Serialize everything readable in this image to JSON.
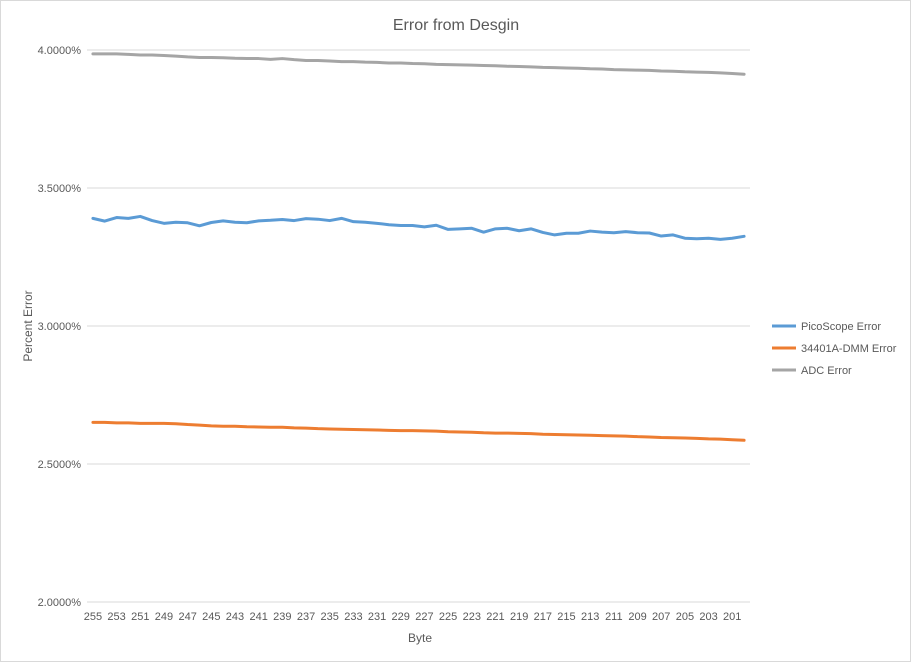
{
  "chart_data": {
    "type": "line",
    "title": "Error from Desgin",
    "xlabel": "Byte",
    "ylabel": "Percent Error",
    "ylim": [
      2.0,
      4.0
    ],
    "yticks": [
      "2.0000%",
      "2.5000%",
      "3.0000%",
      "3.5000%",
      "4.0000%"
    ],
    "ytick_values": [
      2.0,
      2.5,
      3.0,
      3.5,
      4.0
    ],
    "x": [
      255,
      254,
      253,
      252,
      251,
      250,
      249,
      248,
      247,
      246,
      245,
      244,
      243,
      242,
      241,
      240,
      239,
      238,
      237,
      236,
      235,
      234,
      233,
      232,
      231,
      230,
      229,
      228,
      227,
      226,
      225,
      224,
      223,
      222,
      221,
      220,
      219,
      218,
      217,
      216,
      215,
      214,
      213,
      212,
      211,
      210,
      209,
      208,
      207,
      206,
      205,
      204,
      203,
      202,
      201,
      200
    ],
    "xtick_labels": [
      "255",
      "253",
      "251",
      "249",
      "247",
      "245",
      "243",
      "241",
      "239",
      "237",
      "235",
      "233",
      "231",
      "229",
      "227",
      "225",
      "223",
      "221",
      "219",
      "217",
      "215",
      "213",
      "211",
      "209",
      "207",
      "205",
      "203",
      "201"
    ],
    "grid": "horizontal",
    "legend_position": "right",
    "series": [
      {
        "name": "PicoScope Error",
        "color": "#5b9bd5",
        "values": [
          3.39,
          3.38,
          3.393,
          3.39,
          3.397,
          3.382,
          3.372,
          3.376,
          3.374,
          3.363,
          3.375,
          3.381,
          3.376,
          3.374,
          3.381,
          3.383,
          3.386,
          3.382,
          3.389,
          3.387,
          3.382,
          3.39,
          3.378,
          3.376,
          3.372,
          3.367,
          3.364,
          3.364,
          3.359,
          3.365,
          3.35,
          3.352,
          3.354,
          3.34,
          3.352,
          3.354,
          3.345,
          3.352,
          3.339,
          3.33,
          3.336,
          3.336,
          3.344,
          3.34,
          3.338,
          3.342,
          3.338,
          3.337,
          3.326,
          3.33,
          3.318,
          3.316,
          3.318,
          3.314,
          3.318,
          3.325
        ]
      },
      {
        "name": "34401A-DMM Error",
        "color": "#ed7d31",
        "values": [
          2.651,
          2.651,
          2.649,
          2.649,
          2.647,
          2.647,
          2.647,
          2.646,
          2.643,
          2.641,
          2.638,
          2.637,
          2.637,
          2.635,
          2.634,
          2.633,
          2.633,
          2.631,
          2.63,
          2.628,
          2.627,
          2.626,
          2.625,
          2.624,
          2.623,
          2.622,
          2.621,
          2.621,
          2.62,
          2.619,
          2.617,
          2.616,
          2.615,
          2.613,
          2.612,
          2.612,
          2.611,
          2.61,
          2.608,
          2.607,
          2.606,
          2.605,
          2.604,
          2.603,
          2.602,
          2.601,
          2.599,
          2.598,
          2.596,
          2.595,
          2.594,
          2.593,
          2.591,
          2.59,
          2.588,
          2.586
        ]
      },
      {
        "name": "ADC Error",
        "color": "#a5a5a5",
        "values": [
          3.986,
          3.986,
          3.986,
          3.984,
          3.982,
          3.982,
          3.98,
          3.978,
          3.975,
          3.973,
          3.973,
          3.972,
          3.97,
          3.969,
          3.969,
          3.966,
          3.969,
          3.965,
          3.962,
          3.962,
          3.96,
          3.958,
          3.958,
          3.956,
          3.955,
          3.953,
          3.953,
          3.951,
          3.95,
          3.948,
          3.947,
          3.946,
          3.945,
          3.944,
          3.943,
          3.941,
          3.94,
          3.939,
          3.937,
          3.936,
          3.935,
          3.934,
          3.932,
          3.931,
          3.929,
          3.928,
          3.927,
          3.926,
          3.924,
          3.923,
          3.921,
          3.92,
          3.919,
          3.917,
          3.915,
          3.912
        ]
      }
    ]
  }
}
